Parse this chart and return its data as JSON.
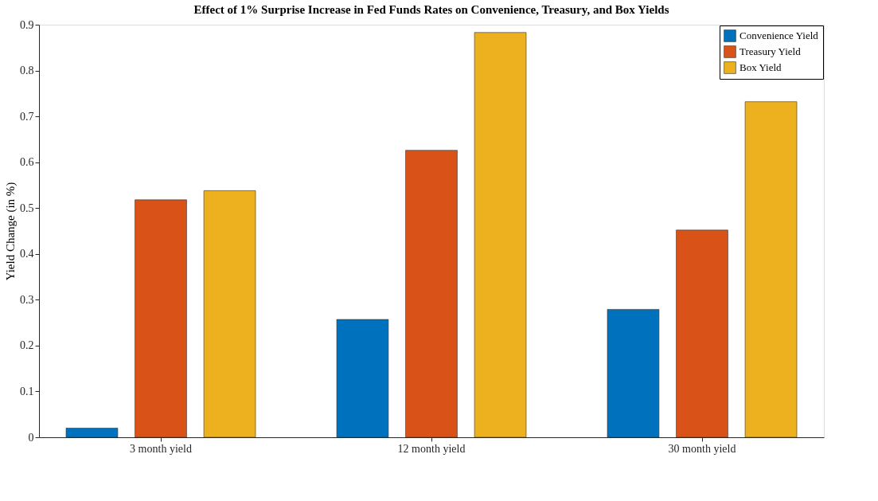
{
  "chart_data": {
    "type": "bar",
    "title": "Effect of 1% Surprise Increase in Fed Funds Rates on Convenience, Treasury, and Box Yields",
    "ylabel": "Yield Change (in %)",
    "categories": [
      "3 month yield",
      "12 month yield",
      "30 month yield"
    ],
    "series": [
      {
        "name": "Convenience Yield",
        "color": "#0072bd",
        "values": [
          0.02,
          0.257,
          0.279
        ]
      },
      {
        "name": "Treasury Yield",
        "color": "#d95319",
        "values": [
          0.518,
          0.626,
          0.452
        ]
      },
      {
        "name": "Box Yield",
        "color": "#edb120",
        "values": [
          0.538,
          0.883,
          0.732
        ]
      }
    ],
    "ylim": [
      0,
      0.9
    ],
    "yticks": [
      0,
      0.1,
      0.2,
      0.3,
      0.4,
      0.5,
      0.6,
      0.7,
      0.8,
      0.9
    ],
    "grid": false,
    "legend": "top right"
  }
}
